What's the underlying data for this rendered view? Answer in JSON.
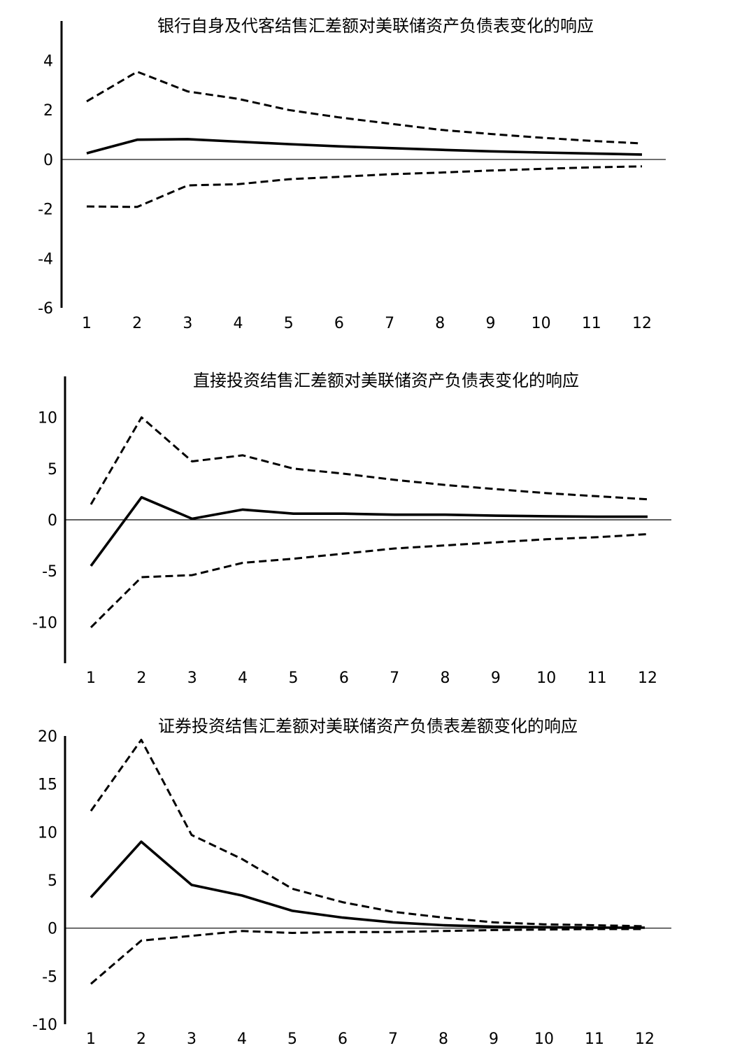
{
  "chart_data": [
    {
      "type": "line",
      "title": "银行自身及代客结售汇差额对美联储资产负债表变化的响应",
      "xlabel": "",
      "ylabel": "",
      "categories": [
        "1",
        "2",
        "3",
        "4",
        "5",
        "6",
        "7",
        "8",
        "9",
        "10",
        "11",
        "12"
      ],
      "y_ticks": [
        "4",
        "2",
        "0",
        "-2",
        "-4",
        "-6"
      ],
      "ylim": [
        -6,
        5.6
      ],
      "grid": false,
      "series": [
        {
          "style": "solid",
          "values": [
            0.25,
            0.8,
            0.82,
            0.72,
            0.62,
            0.53,
            0.46,
            0.39,
            0.33,
            0.28,
            0.24,
            0.2
          ]
        },
        {
          "style": "dashed",
          "values": [
            2.35,
            3.55,
            2.75,
            2.45,
            2.0,
            1.7,
            1.45,
            1.2,
            1.03,
            0.88,
            0.75,
            0.65
          ]
        },
        {
          "style": "dashed",
          "values": [
            -1.9,
            -1.92,
            -1.05,
            -1.0,
            -0.8,
            -0.7,
            -0.6,
            -0.53,
            -0.45,
            -0.38,
            -0.32,
            -0.28
          ]
        }
      ]
    },
    {
      "type": "line",
      "title": "直接投资结售汇差额对美联储资产负债表变化的响应",
      "xlabel": "",
      "ylabel": "",
      "categories": [
        "1",
        "2",
        "3",
        "4",
        "5",
        "6",
        "7",
        "8",
        "9",
        "10",
        "11",
        "12"
      ],
      "y_ticks": [
        "10",
        "5",
        "0",
        "-5",
        "-10"
      ],
      "ylim": [
        -14,
        14
      ],
      "grid": false,
      "series": [
        {
          "style": "solid",
          "values": [
            -4.5,
            2.2,
            0.1,
            1.0,
            0.6,
            0.6,
            0.5,
            0.5,
            0.4,
            0.35,
            0.3,
            0.3
          ]
        },
        {
          "style": "dashed",
          "values": [
            1.5,
            10.0,
            5.7,
            6.3,
            5.0,
            4.5,
            3.9,
            3.4,
            3.0,
            2.6,
            2.3,
            2.0
          ]
        },
        {
          "style": "dashed",
          "values": [
            -10.5,
            -5.6,
            -5.4,
            -4.2,
            -3.8,
            -3.3,
            -2.8,
            -2.5,
            -2.2,
            -1.9,
            -1.7,
            -1.4
          ]
        }
      ]
    },
    {
      "type": "line",
      "title": "证券投资结售汇差额对美联储资产负债表差额变化的响应",
      "xlabel": "",
      "ylabel": "",
      "categories": [
        "1",
        "2",
        "3",
        "4",
        "5",
        "6",
        "7",
        "8",
        "9",
        "10",
        "11",
        "12"
      ],
      "y_ticks": [
        "20",
        "15",
        "10",
        "5",
        "0",
        "-5",
        "-10"
      ],
      "ylim": [
        -10,
        20
      ],
      "grid": false,
      "series": [
        {
          "style": "solid",
          "values": [
            3.2,
            9.0,
            4.5,
            3.4,
            1.8,
            1.1,
            0.6,
            0.3,
            0.15,
            0.1,
            0.05,
            0.05
          ]
        },
        {
          "style": "dashed",
          "values": [
            12.2,
            19.6,
            9.7,
            7.2,
            4.1,
            2.7,
            1.7,
            1.1,
            0.6,
            0.4,
            0.3,
            0.2
          ]
        },
        {
          "style": "dashed",
          "values": [
            -5.8,
            -1.3,
            -0.8,
            -0.3,
            -0.5,
            -0.4,
            -0.4,
            -0.3,
            -0.2,
            -0.15,
            -0.1,
            -0.1
          ]
        }
      ]
    }
  ]
}
